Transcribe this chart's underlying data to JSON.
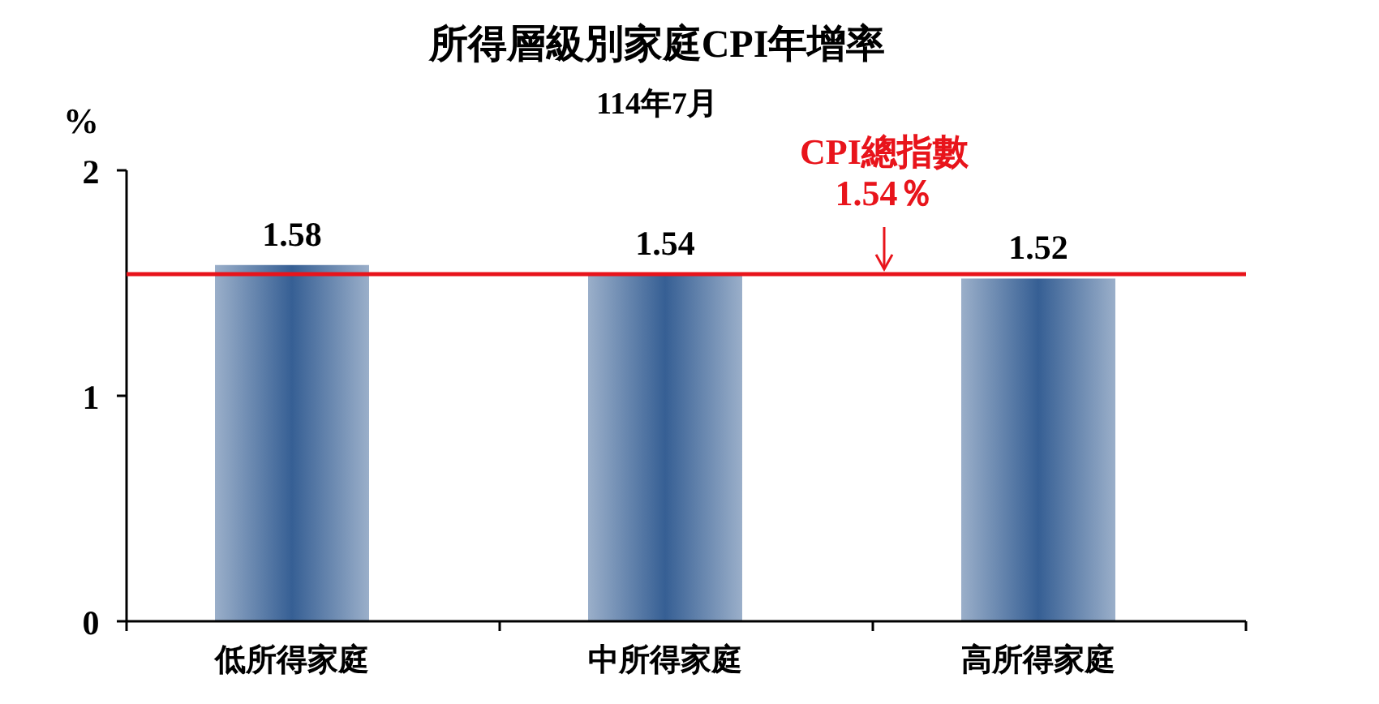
{
  "chart_data": {
    "type": "bar",
    "title": "所得層級別家庭CPI年增率",
    "subtitle": "114年7月",
    "ylabel": "%",
    "categories": [
      "低所得家庭",
      "中所得家庭",
      "高所得家庭"
    ],
    "values": [
      1.58,
      1.54,
      1.52
    ],
    "color": "#365f94",
    "data_labels": true,
    "ylim": [
      0,
      2
    ],
    "yticks": [
      0,
      1,
      2
    ],
    "ref_lines": [
      {
        "axis": "y",
        "value": 1.54,
        "label": "CPI總指數\n1.54％",
        "color": "#e8141b"
      }
    ]
  }
}
